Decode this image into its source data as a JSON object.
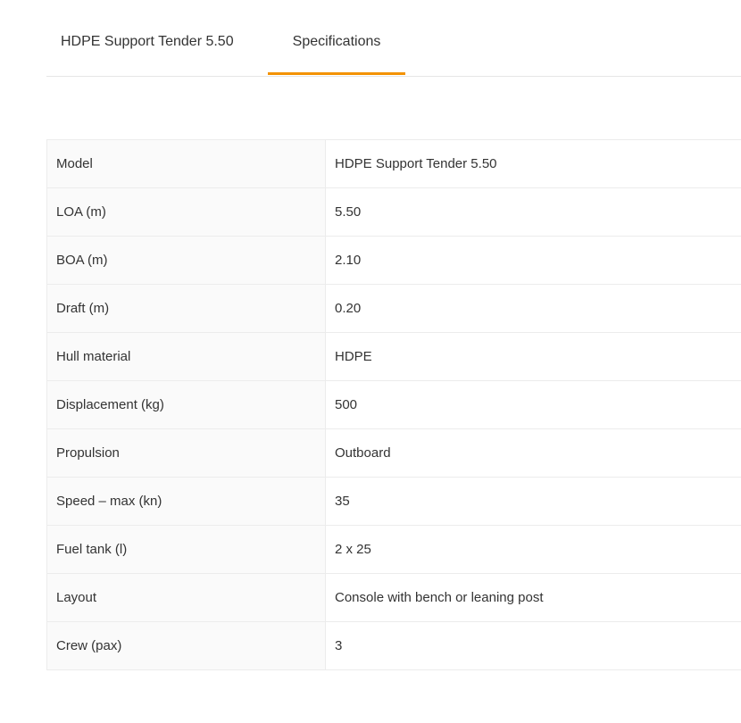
{
  "tabs": [
    {
      "label": "HDPE Support Tender 5.50",
      "active": false
    },
    {
      "label": "Specifications",
      "active": true
    }
  ],
  "accent_color": "#f39200",
  "specs": [
    {
      "label": "Model",
      "value": "HDPE Support Tender 5.50"
    },
    {
      "label": "LOA (m)",
      "value": "5.50"
    },
    {
      "label": "BOA (m)",
      "value": "2.10"
    },
    {
      "label": "Draft (m)",
      "value": "0.20"
    },
    {
      "label": "Hull material",
      "value": "HDPE"
    },
    {
      "label": "Displacement (kg)",
      "value": "500"
    },
    {
      "label": "Propulsion",
      "value": "Outboard"
    },
    {
      "label": "Speed – max (kn)",
      "value": "35"
    },
    {
      "label": "Fuel tank (l)",
      "value": "2 x 25"
    },
    {
      "label": "Layout",
      "value": "Console with bench or leaning post"
    },
    {
      "label": "Crew (pax)",
      "value": "3"
    }
  ]
}
